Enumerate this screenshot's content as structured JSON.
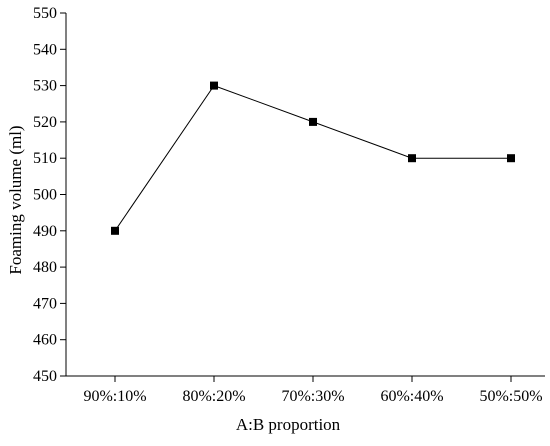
{
  "chart_data": {
    "type": "line",
    "title": "",
    "xlabel": "A:B proportion",
    "ylabel": "Foaming volume (ml)",
    "categories": [
      "90%:10%",
      "80%:20%",
      "70%:30%",
      "60%:40%",
      "50%:50%"
    ],
    "series": [
      {
        "values": [
          490,
          530,
          520,
          510,
          510
        ],
        "marker": "square",
        "color": "#000000"
      }
    ],
    "ylim": [
      450,
      550
    ],
    "yticks": [
      450,
      460,
      470,
      480,
      490,
      500,
      510,
      520,
      530,
      540,
      550
    ],
    "grid": false,
    "legend": "none"
  }
}
